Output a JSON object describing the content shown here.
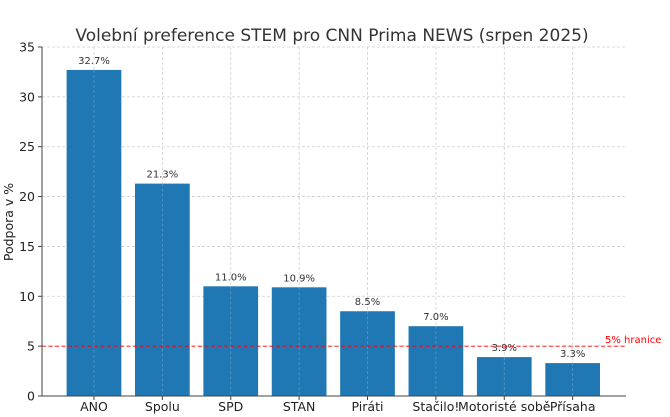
{
  "chart_data": {
    "type": "bar",
    "title": "Volební preference STEM pro CNN Prima NEWS (srpen 2025)",
    "xlabel": "",
    "ylabel": "Podpora v %",
    "categories": [
      "ANO",
      "Spolu",
      "SPD",
      "STAN",
      "Piráti",
      "Stačilo!",
      "Motoristé sobě",
      "Přísaha"
    ],
    "values": [
      32.7,
      21.3,
      11.0,
      10.9,
      8.5,
      7.0,
      3.9,
      3.3
    ],
    "data_labels": [
      "32.7%",
      "21.3%",
      "11.0%",
      "10.9%",
      "8.5%",
      "7.0%",
      "3.9%",
      "3.3%"
    ],
    "ylim": [
      0,
      35
    ],
    "yticks": [
      0,
      5,
      10,
      15,
      20,
      25,
      30,
      35
    ],
    "grid": true,
    "bar_color": "#1f77b4",
    "threshold": {
      "value": 5,
      "label": "5% hranice",
      "color": "#ff0000"
    }
  }
}
